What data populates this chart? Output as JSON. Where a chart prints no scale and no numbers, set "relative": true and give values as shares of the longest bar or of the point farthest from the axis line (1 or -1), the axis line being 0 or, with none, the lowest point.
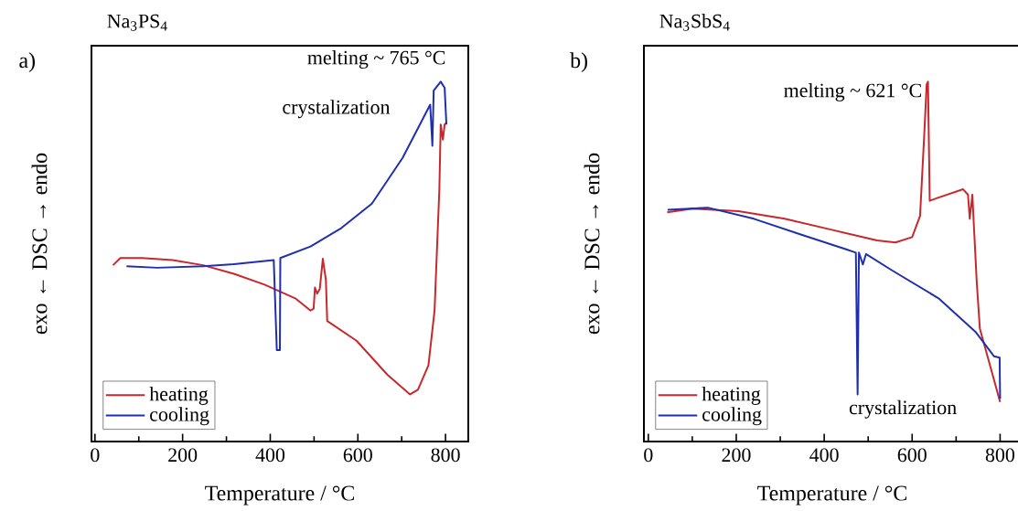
{
  "chart_data": [
    {
      "type": "line",
      "title": "Na$_{3}$PS$_{4}$",
      "xlabel": "Temperature / °C",
      "ylabel": "exo ← DSC → endo",
      "relative": true,
      "xlim": [
        -8,
        852
      ],
      "xticks": [
        0,
        200,
        400,
        600,
        800
      ],
      "grid": false,
      "legend": "bottom left",
      "annotations": [
        "a)",
        {
          "text": "melting ~ 765 °C",
          "x": 789,
          "y": 1.0
        },
        {
          "text": "crystalization",
          "x": 770,
          "y": 0.822
        }
      ],
      "series": [
        {
          "name": "heating",
          "color": "#c8282d",
          "x": [
            41,
            58,
            107,
            177,
            247,
            317,
            387,
            457,
            492,
            499,
            502,
            507,
            513,
            520,
            527,
            530,
            597,
            667,
            719,
            737,
            761,
            775,
            786,
            789,
            794,
            798,
            802
          ],
          "values": [
            0.49,
            0.51,
            0.51,
            0.504,
            0.49,
            0.466,
            0.436,
            0.398,
            0.364,
            0.369,
            0.428,
            0.411,
            0.424,
            0.508,
            0.449,
            0.335,
            0.28,
            0.186,
            0.131,
            0.144,
            0.212,
            0.364,
            0.703,
            0.881,
            0.839,
            0.881,
            0.886
          ]
        },
        {
          "name": "cooling",
          "color": "#1f2fb0",
          "x": [
            72,
            142,
            247,
            317,
            408,
            415,
            422,
            423,
            492,
            562,
            632,
            702,
            765,
            770,
            773,
            789,
            798,
            802
          ],
          "values": [
            0.487,
            0.483,
            0.487,
            0.493,
            0.504,
            0.254,
            0.254,
            0.51,
            0.542,
            0.593,
            0.661,
            0.788,
            0.936,
            0.822,
            0.975,
            1.0,
            0.983,
            0.881
          ]
        }
      ]
    },
    {
      "type": "line",
      "title": "Na$_{3}$SbS$_{4}$",
      "xlabel": "Temperature / °C",
      "ylabel": "exo ← DSC → endo",
      "relative": true,
      "xlim": [
        -10,
        847
      ],
      "xticks": [
        0,
        200,
        400,
        600,
        800
      ],
      "grid": false,
      "legend": "bottom left",
      "annotations": [
        "b)",
        {
          "text": "melting ~ 621 °C",
          "x": 636,
          "y": 1.0
        },
        {
          "text": "crystalization",
          "x": 476,
          "y": 0.131
        }
      ],
      "series": [
        {
          "name": "heating",
          "color": "#c8282d",
          "x": [
            43,
            100,
            205,
            310,
            415,
            520,
            562,
            600,
            618,
            628,
            633,
            636,
            640,
            660,
            716,
            727,
            731,
            737,
            740,
            747,
            754,
            779,
            800
          ],
          "values": [
            0.637,
            0.647,
            0.64,
            0.619,
            0.589,
            0.559,
            0.553,
            0.568,
            0.627,
            0.864,
            0.992,
            1.0,
            0.669,
            0.678,
            0.701,
            0.686,
            0.619,
            0.686,
            0.61,
            0.441,
            0.314,
            0.203,
            0.11
          ]
        },
        {
          "name": "cooling",
          "color": "#1f2fb0",
          "x": [
            44,
            135,
            240,
            345,
            450,
            472,
            476,
            479,
            488,
            495,
            555,
            660,
            744,
            786,
            799,
            800
          ],
          "values": [
            0.644,
            0.65,
            0.619,
            0.576,
            0.534,
            0.525,
            0.131,
            0.525,
            0.492,
            0.521,
            0.475,
            0.398,
            0.305,
            0.237,
            0.233,
            0.119
          ]
        }
      ]
    }
  ]
}
